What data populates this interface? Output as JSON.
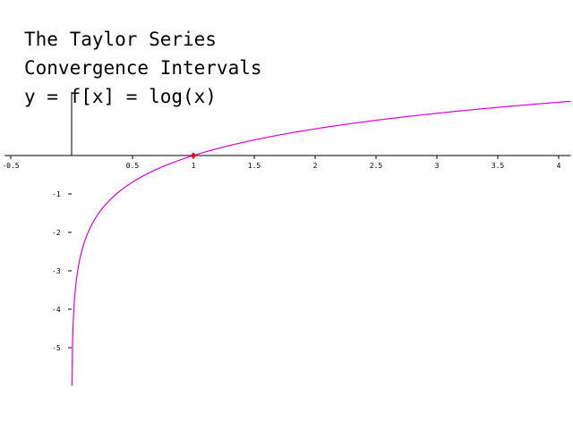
{
  "chart_data": {
    "type": "line",
    "title_lines": [
      "The Taylor Series",
      "Convergence Intervals",
      "y = f[x] = log(x)"
    ],
    "function": "log(x)",
    "xlabel": "",
    "ylabel": "",
    "xlim": [
      -0.55,
      4.1
    ],
    "ylim": [
      -6.1,
      1.65
    ],
    "x_ticks": [
      -0.5,
      0.5,
      1,
      1.5,
      2,
      2.5,
      3,
      3.5,
      4
    ],
    "x_tick_labels": [
      "-0.5",
      "0.5",
      "1",
      "1.5",
      "2",
      "2.5",
      "3",
      "3.5",
      "4"
    ],
    "y_ticks": [
      -1,
      -2,
      -3,
      -4,
      -5
    ],
    "y_tick_labels": [
      "-1",
      "-2",
      "-3",
      "-4",
      "-5"
    ],
    "series": [
      {
        "color": "#dd00dd",
        "x": [
          0.0025,
          0.005,
          0.01,
          0.02,
          0.05,
          0.1,
          0.2,
          0.3,
          0.5,
          0.75,
          1,
          1.5,
          2,
          2.5,
          3,
          3.5,
          4.1
        ],
        "y": [
          -5.99,
          -5.3,
          -4.61,
          -3.91,
          -3.0,
          -2.3,
          -1.61,
          -1.2,
          -0.69,
          -0.29,
          0,
          0.41,
          0.69,
          0.92,
          1.1,
          1.25,
          1.41
        ]
      }
    ],
    "points": [
      {
        "x": 1,
        "y": 0,
        "color": "#ff0000"
      }
    ],
    "grid": false,
    "legend": "none"
  }
}
